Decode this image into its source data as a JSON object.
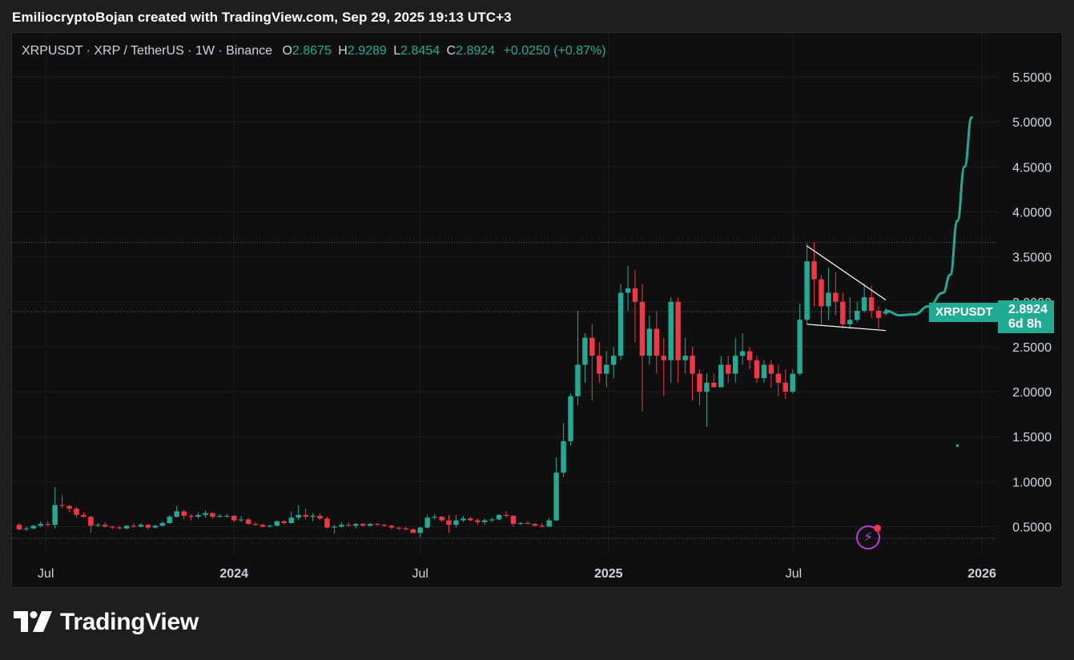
{
  "caption": "EmiliocryptoBojan created with TradingView.com, Sep 29, 2025 19:13 UTC+3",
  "legend": {
    "title": "XRPUSDT · XRP / TetherUS · 1W · Binance",
    "open_label": "O",
    "open": "2.8675",
    "high_label": "H",
    "high": "2.9289",
    "low_label": "L",
    "low": "2.8454",
    "close_label": "C",
    "close": "2.8924",
    "change": "+0.0250 (+0.87%)"
  },
  "price_tag": {
    "symbol": "XRPUSDT",
    "price": "2.8924",
    "countdown": "6d 8h"
  },
  "footer": {
    "brand": "TradingView"
  },
  "colors": {
    "up": "#22ab94",
    "down": "#f23645",
    "projection": "#22ab94",
    "pattern_lines": "#ffffff",
    "accent_purple": "#b93fd8"
  },
  "chart_data": {
    "type": "candlestick",
    "symbol": "XRPUSDT",
    "interval": "1W",
    "ylim": [
      0.2,
      5.75
    ],
    "y_ticks": [
      "5.5000",
      "5.0000",
      "4.5000",
      "4.0000",
      "3.5000",
      "3.0000",
      "2.5000",
      "2.0000",
      "1.5000",
      "1.0000",
      "0.5000"
    ],
    "x_ticks": [
      "Jul",
      "2024",
      "Jul",
      "2025",
      "Jul",
      "2026"
    ],
    "horizontal_levels": [
      3.66,
      2.89,
      0.37
    ],
    "x_range": [
      "2023-05-29",
      "2026-01-26"
    ],
    "x_tick_dates": [
      "2023-07-01",
      "2024-01-01",
      "2024-07-01",
      "2025-01-01",
      "2025-07-01",
      "2026-01-01"
    ],
    "weeks": [
      [
        "2023-06-05",
        0.52,
        0.54,
        0.46,
        0.47
      ],
      [
        "2023-06-12",
        0.47,
        0.5,
        0.45,
        0.48
      ],
      [
        "2023-06-19",
        0.48,
        0.52,
        0.47,
        0.51
      ],
      [
        "2023-06-26",
        0.51,
        0.56,
        0.49,
        0.53
      ],
      [
        "2023-07-03",
        0.53,
        0.56,
        0.5,
        0.52
      ],
      [
        "2023-07-10",
        0.52,
        0.94,
        0.48,
        0.74
      ],
      [
        "2023-07-17",
        0.74,
        0.85,
        0.7,
        0.73
      ],
      [
        "2023-07-24",
        0.73,
        0.74,
        0.66,
        0.7
      ],
      [
        "2023-07-31",
        0.7,
        0.72,
        0.6,
        0.63
      ],
      [
        "2023-08-07",
        0.63,
        0.66,
        0.6,
        0.61
      ],
      [
        "2023-08-14",
        0.61,
        0.62,
        0.43,
        0.51
      ],
      [
        "2023-08-21",
        0.51,
        0.54,
        0.5,
        0.52
      ],
      [
        "2023-08-28",
        0.52,
        0.55,
        0.49,
        0.5
      ],
      [
        "2023-09-04",
        0.5,
        0.51,
        0.47,
        0.49
      ],
      [
        "2023-09-11",
        0.49,
        0.51,
        0.47,
        0.48
      ],
      [
        "2023-09-18",
        0.48,
        0.52,
        0.47,
        0.51
      ],
      [
        "2023-09-25",
        0.51,
        0.54,
        0.49,
        0.5
      ],
      [
        "2023-10-02",
        0.5,
        0.54,
        0.49,
        0.52
      ],
      [
        "2023-10-09",
        0.52,
        0.53,
        0.47,
        0.49
      ],
      [
        "2023-10-16",
        0.49,
        0.52,
        0.48,
        0.51
      ],
      [
        "2023-10-23",
        0.51,
        0.56,
        0.5,
        0.54
      ],
      [
        "2023-10-30",
        0.54,
        0.63,
        0.53,
        0.61
      ],
      [
        "2023-11-06",
        0.61,
        0.73,
        0.6,
        0.67
      ],
      [
        "2023-11-13",
        0.67,
        0.69,
        0.58,
        0.62
      ],
      [
        "2023-11-20",
        0.62,
        0.64,
        0.57,
        0.61
      ],
      [
        "2023-11-27",
        0.61,
        0.66,
        0.59,
        0.63
      ],
      [
        "2023-12-04",
        0.63,
        0.68,
        0.6,
        0.65
      ],
      [
        "2023-12-11",
        0.65,
        0.66,
        0.59,
        0.61
      ],
      [
        "2023-12-18",
        0.61,
        0.64,
        0.6,
        0.62
      ],
      [
        "2023-12-25",
        0.62,
        0.64,
        0.6,
        0.62
      ],
      [
        "2024-01-01",
        0.62,
        0.63,
        0.55,
        0.57
      ],
      [
        "2024-01-08",
        0.57,
        0.62,
        0.55,
        0.58
      ],
      [
        "2024-01-15",
        0.58,
        0.6,
        0.52,
        0.53
      ],
      [
        "2024-01-22",
        0.53,
        0.55,
        0.51,
        0.52
      ],
      [
        "2024-01-29",
        0.52,
        0.53,
        0.49,
        0.5
      ],
      [
        "2024-02-05",
        0.5,
        0.52,
        0.49,
        0.51
      ],
      [
        "2024-02-12",
        0.51,
        0.57,
        0.5,
        0.56
      ],
      [
        "2024-02-19",
        0.56,
        0.57,
        0.52,
        0.54
      ],
      [
        "2024-02-26",
        0.54,
        0.67,
        0.53,
        0.6
      ],
      [
        "2024-03-04",
        0.6,
        0.74,
        0.57,
        0.63
      ],
      [
        "2024-03-11",
        0.63,
        0.7,
        0.58,
        0.61
      ],
      [
        "2024-03-18",
        0.61,
        0.65,
        0.56,
        0.62
      ],
      [
        "2024-03-25",
        0.62,
        0.65,
        0.57,
        0.59
      ],
      [
        "2024-04-01",
        0.59,
        0.61,
        0.48,
        0.49
      ],
      [
        "2024-04-08",
        0.49,
        0.52,
        0.42,
        0.5
      ],
      [
        "2024-04-15",
        0.5,
        0.55,
        0.49,
        0.52
      ],
      [
        "2024-04-22",
        0.52,
        0.55,
        0.5,
        0.51
      ],
      [
        "2024-04-29",
        0.51,
        0.54,
        0.48,
        0.53
      ],
      [
        "2024-05-06",
        0.53,
        0.54,
        0.5,
        0.51
      ],
      [
        "2024-05-13",
        0.51,
        0.54,
        0.5,
        0.53
      ],
      [
        "2024-05-20",
        0.53,
        0.54,
        0.51,
        0.52
      ],
      [
        "2024-05-27",
        0.52,
        0.53,
        0.5,
        0.51
      ],
      [
        "2024-06-03",
        0.51,
        0.52,
        0.47,
        0.49
      ],
      [
        "2024-06-10",
        0.49,
        0.5,
        0.46,
        0.48
      ],
      [
        "2024-06-17",
        0.48,
        0.5,
        0.46,
        0.47
      ],
      [
        "2024-06-24",
        0.47,
        0.48,
        0.43,
        0.43
      ],
      [
        "2024-07-01",
        0.43,
        0.5,
        0.38,
        0.49
      ],
      [
        "2024-07-08",
        0.49,
        0.63,
        0.48,
        0.6
      ],
      [
        "2024-07-15",
        0.6,
        0.64,
        0.58,
        0.61
      ],
      [
        "2024-07-22",
        0.61,
        0.62,
        0.55,
        0.57
      ],
      [
        "2024-07-29",
        0.57,
        0.63,
        0.43,
        0.52
      ],
      [
        "2024-08-05",
        0.52,
        0.63,
        0.49,
        0.57
      ],
      [
        "2024-08-12",
        0.57,
        0.62,
        0.55,
        0.59
      ],
      [
        "2024-08-19",
        0.59,
        0.61,
        0.56,
        0.57
      ],
      [
        "2024-08-26",
        0.57,
        0.59,
        0.52,
        0.55
      ],
      [
        "2024-09-02",
        0.55,
        0.59,
        0.52,
        0.57
      ],
      [
        "2024-09-09",
        0.57,
        0.6,
        0.55,
        0.58
      ],
      [
        "2024-09-16",
        0.58,
        0.64,
        0.57,
        0.63
      ],
      [
        "2024-09-23",
        0.63,
        0.67,
        0.6,
        0.62
      ],
      [
        "2024-09-30",
        0.62,
        0.63,
        0.5,
        0.53
      ],
      [
        "2024-10-07",
        0.53,
        0.55,
        0.52,
        0.54
      ],
      [
        "2024-10-14",
        0.54,
        0.56,
        0.53,
        0.53
      ],
      [
        "2024-10-21",
        0.53,
        0.54,
        0.5,
        0.51
      ],
      [
        "2024-10-28",
        0.51,
        0.54,
        0.49,
        0.5
      ],
      [
        "2024-11-04",
        0.5,
        0.6,
        0.5,
        0.57
      ],
      [
        "2024-11-11",
        0.57,
        1.27,
        0.56,
        1.1
      ],
      [
        "2024-11-18",
        1.1,
        1.65,
        1.05,
        1.45
      ],
      [
        "2024-11-25",
        1.45,
        1.98,
        1.4,
        1.95
      ],
      [
        "2024-12-02",
        1.95,
        2.9,
        1.85,
        2.3
      ],
      [
        "2024-12-09",
        2.3,
        2.65,
        2.1,
        2.6
      ],
      [
        "2024-12-16",
        2.6,
        2.75,
        1.9,
        2.4
      ],
      [
        "2024-12-23",
        2.4,
        2.55,
        2.1,
        2.2
      ],
      [
        "2024-12-30",
        2.2,
        2.45,
        2.05,
        2.3
      ],
      [
        "2025-01-06",
        2.3,
        2.5,
        2.15,
        2.4
      ],
      [
        "2025-01-13",
        2.4,
        3.2,
        2.35,
        3.1
      ],
      [
        "2025-01-20",
        3.1,
        3.4,
        2.9,
        3.15
      ],
      [
        "2025-01-27",
        3.15,
        3.35,
        2.55,
        3.0
      ],
      [
        "2025-02-03",
        3.0,
        3.2,
        1.78,
        2.4
      ],
      [
        "2025-02-10",
        2.4,
        2.85,
        2.3,
        2.7
      ],
      [
        "2025-02-17",
        2.7,
        2.9,
        2.2,
        2.4
      ],
      [
        "2025-02-24",
        2.4,
        2.6,
        1.95,
        2.35
      ],
      [
        "2025-03-03",
        2.35,
        3.05,
        2.1,
        3.0
      ],
      [
        "2025-03-10",
        3.0,
        3.05,
        2.1,
        2.35
      ],
      [
        "2025-03-17",
        2.35,
        2.6,
        2.2,
        2.4
      ],
      [
        "2025-03-24",
        2.4,
        2.5,
        1.9,
        2.2
      ],
      [
        "2025-03-31",
        2.2,
        2.25,
        1.85,
        2.0
      ],
      [
        "2025-04-07",
        2.0,
        2.2,
        1.61,
        2.1
      ],
      [
        "2025-04-14",
        2.1,
        2.2,
        2.05,
        2.05
      ],
      [
        "2025-04-21",
        2.05,
        2.4,
        2.05,
        2.3
      ],
      [
        "2025-04-28",
        2.3,
        2.4,
        2.1,
        2.2
      ],
      [
        "2025-05-05",
        2.2,
        2.6,
        2.1,
        2.4
      ],
      [
        "2025-05-12",
        2.4,
        2.65,
        2.3,
        2.45
      ],
      [
        "2025-05-19",
        2.45,
        2.5,
        2.25,
        2.35
      ],
      [
        "2025-05-26",
        2.35,
        2.4,
        2.1,
        2.15
      ],
      [
        "2025-06-02",
        2.15,
        2.35,
        2.1,
        2.3
      ],
      [
        "2025-06-09",
        2.3,
        2.35,
        2.05,
        2.2
      ],
      [
        "2025-06-16",
        2.2,
        2.3,
        1.95,
        2.1
      ],
      [
        "2025-06-23",
        2.1,
        2.25,
        1.92,
        2.0
      ],
      [
        "2025-06-30",
        2.0,
        2.25,
        1.98,
        2.2
      ],
      [
        "2025-07-07",
        2.2,
        2.98,
        2.18,
        2.8
      ],
      [
        "2025-07-14",
        2.8,
        3.65,
        2.75,
        3.45
      ],
      [
        "2025-07-21",
        3.45,
        3.66,
        2.95,
        3.25
      ],
      [
        "2025-07-28",
        3.25,
        3.3,
        2.75,
        2.95
      ],
      [
        "2025-08-04",
        2.95,
        3.38,
        2.8,
        3.1
      ],
      [
        "2025-08-11",
        3.1,
        3.33,
        2.85,
        3.0
      ],
      [
        "2025-08-18",
        3.0,
        3.1,
        2.7,
        2.75
      ],
      [
        "2025-08-25",
        2.75,
        3.05,
        2.7,
        2.8
      ],
      [
        "2025-09-01",
        2.8,
        3.0,
        2.77,
        2.9
      ],
      [
        "2025-09-08",
        2.9,
        3.2,
        2.88,
        3.05
      ],
      [
        "2025-09-15",
        3.05,
        3.18,
        2.82,
        2.9
      ],
      [
        "2025-09-22",
        2.9,
        2.95,
        2.7,
        2.82
      ],
      [
        "2025-09-29",
        2.8675,
        2.9289,
        2.8454,
        2.8924
      ]
    ],
    "projection": [
      [
        "2025-09-29",
        2.9
      ],
      [
        "2025-10-13",
        2.85
      ],
      [
        "2025-10-27",
        2.86
      ],
      [
        "2025-11-10",
        2.95
      ],
      [
        "2025-11-24",
        3.1
      ],
      [
        "2025-12-01",
        3.3
      ],
      [
        "2025-12-08",
        3.9
      ],
      [
        "2025-12-15",
        4.5
      ],
      [
        "2025-12-22",
        5.05
      ]
    ],
    "annotations": [
      {
        "type": "trendline",
        "points": [
          [
            "2025-07-14",
            3.62
          ],
          [
            "2025-09-29",
            3.02
          ]
        ]
      },
      {
        "type": "trendline",
        "points": [
          [
            "2025-07-14",
            2.75
          ],
          [
            "2025-09-29",
            2.68
          ]
        ]
      },
      {
        "type": "marker",
        "date": "2025-12-08",
        "value": 1.4
      }
    ]
  }
}
